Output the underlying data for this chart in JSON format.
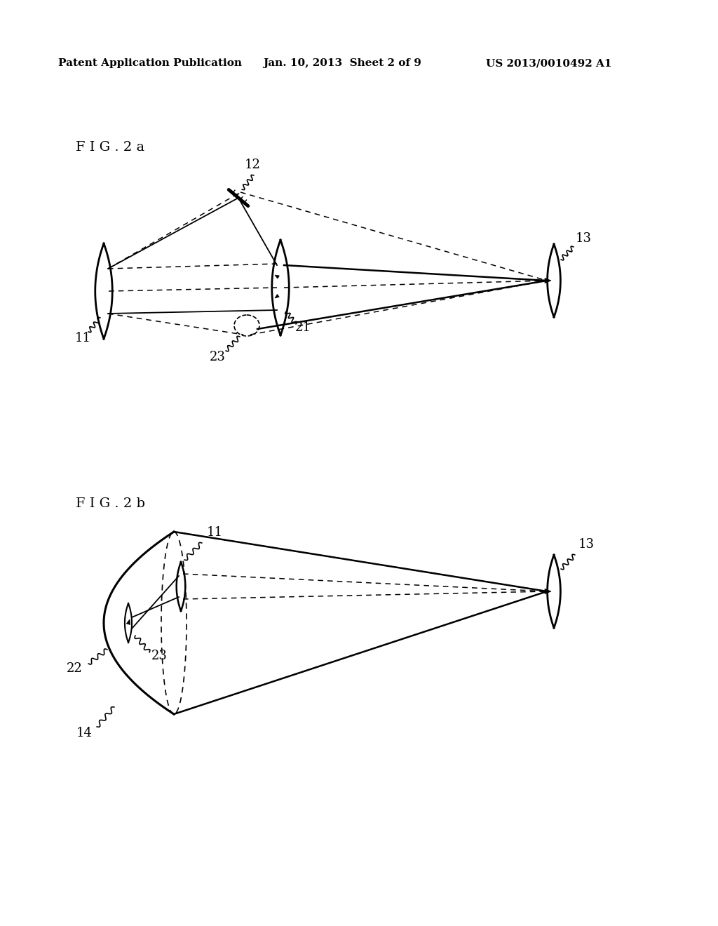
{
  "background_color": "#ffffff",
  "header_text": "Patent Application Publication",
  "header_date": "Jan. 10, 2013  Sheet 2 of 9",
  "header_patent": "US 2013/0010492 A1",
  "fig2a_label": "F I G . 2 a",
  "fig2b_label": "F I G . 2 b",
  "line_color": "#000000",
  "lw_main": 1.8,
  "lw_dash": 1.1,
  "lw_thin": 1.3
}
